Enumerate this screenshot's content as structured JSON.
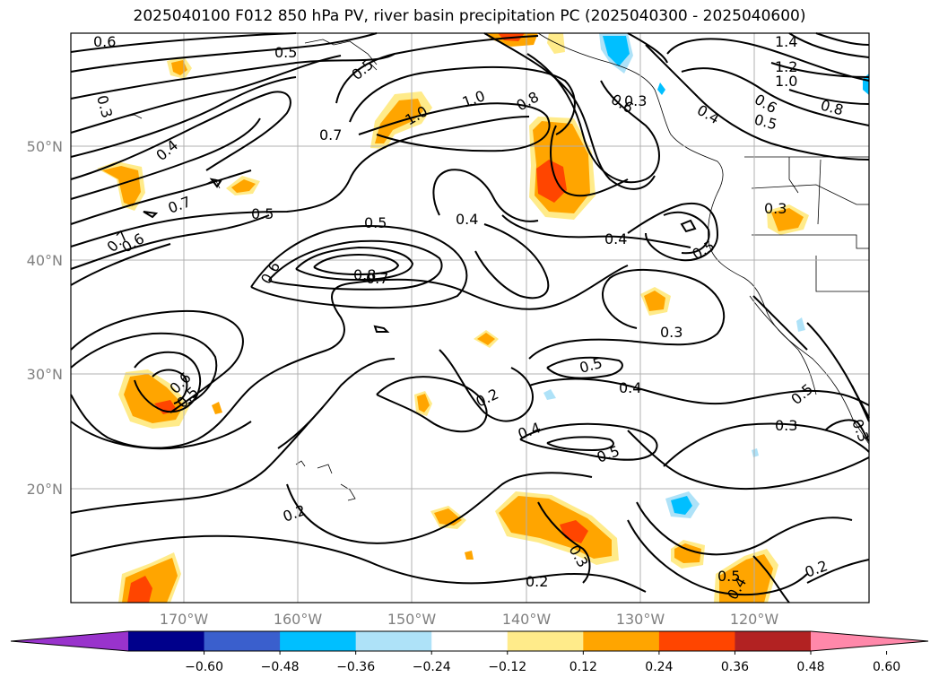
{
  "title": "2025040100 F012 850 hPa PV, river basin precipitation PC (2025040300 - 2025040600)",
  "lat_ticks": [
    "50°N",
    "40°N",
    "30°N",
    "20°N"
  ],
  "lon_ticks": [
    "170°W",
    "160°W",
    "150°W",
    "140°W",
    "130°W",
    "120°W"
  ],
  "colorbar": {
    "ticks": [
      "−0.60",
      "−0.48",
      "−0.36",
      "−0.24",
      "−0.12",
      "0.12",
      "0.24",
      "0.36",
      "0.48",
      "0.60"
    ],
    "colors": [
      "#9933cc",
      "#00008b",
      "#3a5fcd",
      "#00bfff",
      "#aee2f8",
      "#ffffff",
      "#ffeb8a",
      "#ffa500",
      "#ff4500",
      "#b22222",
      "#ff88aa"
    ]
  },
  "contour_labels": [
    "0.6",
    "0.5",
    "0.5",
    "0.3",
    "0.4",
    "0.7",
    "0.7",
    "0.6",
    "0.5",
    "1.0",
    "1.0",
    "0.8",
    "0.7",
    "0.5",
    "0.4",
    "0.6",
    "0.8",
    "0.7",
    "0.4",
    "0.5",
    "0.3",
    "0.6",
    "0.5",
    "0.3",
    "0.5",
    "0.4",
    "0.2",
    "0.4",
    "0.5",
    "0.2",
    "0.3",
    "0.2",
    "0.5",
    "0.2",
    "1.4",
    "1.2",
    "1.0",
    "0.4",
    "0.6",
    "0.5",
    "0.8",
    "0.3",
    "0.5",
    "0.3",
    "0.3",
    "0.6",
    "0.4"
  ],
  "map_colors": {
    "frame": "#000000",
    "grid": "#b0b0b0",
    "contour": "#000000"
  }
}
